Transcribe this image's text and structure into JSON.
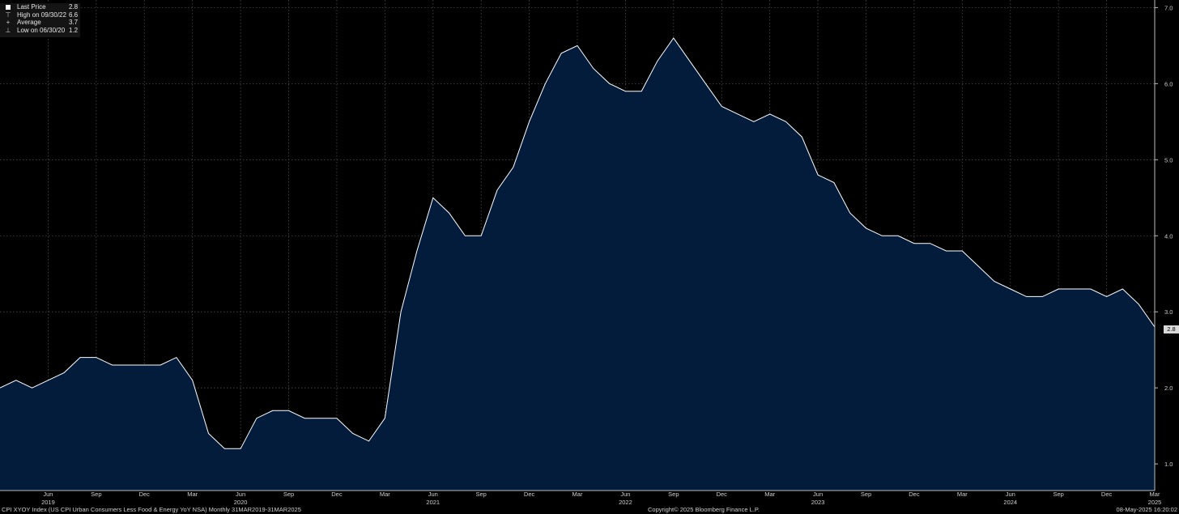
{
  "legend": {
    "items": [
      {
        "label": "Last Price",
        "value": "2.8",
        "icon": "white-square-icon"
      },
      {
        "label": "High on 09/30/22",
        "value": "6.6",
        "icon": "high-marker-icon"
      },
      {
        "label": "Average",
        "value": "3.7",
        "icon": "average-marker-icon"
      },
      {
        "label": "Low on 06/30/20",
        "value": "1.2",
        "icon": "low-marker-icon"
      }
    ]
  },
  "footer": {
    "left": "CPI XYOY Index (US CPI Urban Consumers Less Food & Energy YoY NSA)  Monthly 31MAR2019-31MAR2025",
    "center": "Copyright© 2025 Bloomberg Finance L.P.",
    "right": "08-May-2025 16:20:02"
  },
  "last_value_tag": "2.8",
  "colors": {
    "background": "#000000",
    "area_fill": "#031c3b",
    "line": "#ffffff",
    "grid": "#4a4a4a"
  },
  "chart_data": {
    "type": "area",
    "x": [
      "2019-03",
      "2019-04",
      "2019-05",
      "2019-06",
      "2019-07",
      "2019-08",
      "2019-09",
      "2019-10",
      "2019-11",
      "2019-12",
      "2020-01",
      "2020-02",
      "2020-03",
      "2020-04",
      "2020-05",
      "2020-06",
      "2020-07",
      "2020-08",
      "2020-09",
      "2020-10",
      "2020-11",
      "2020-12",
      "2021-01",
      "2021-02",
      "2021-03",
      "2021-04",
      "2021-05",
      "2021-06",
      "2021-07",
      "2021-08",
      "2021-09",
      "2021-10",
      "2021-11",
      "2021-12",
      "2022-01",
      "2022-02",
      "2022-03",
      "2022-04",
      "2022-05",
      "2022-06",
      "2022-07",
      "2022-08",
      "2022-09",
      "2022-10",
      "2022-11",
      "2022-12",
      "2023-01",
      "2023-02",
      "2023-03",
      "2023-04",
      "2023-05",
      "2023-06",
      "2023-07",
      "2023-08",
      "2023-09",
      "2023-10",
      "2023-11",
      "2023-12",
      "2024-01",
      "2024-02",
      "2024-03",
      "2024-04",
      "2024-05",
      "2024-06",
      "2024-07",
      "2024-08",
      "2024-09",
      "2024-10",
      "2024-11",
      "2024-12",
      "2025-01",
      "2025-02",
      "2025-03"
    ],
    "values": [
      2.0,
      2.1,
      2.0,
      2.1,
      2.2,
      2.4,
      2.4,
      2.3,
      2.3,
      2.3,
      2.3,
      2.4,
      2.1,
      1.4,
      1.2,
      1.2,
      1.6,
      1.7,
      1.7,
      1.6,
      1.6,
      1.6,
      1.4,
      1.3,
      1.6,
      3.0,
      3.8,
      4.5,
      4.3,
      4.0,
      4.0,
      4.6,
      4.9,
      5.5,
      6.0,
      6.4,
      6.5,
      6.2,
      6.0,
      5.9,
      5.9,
      6.3,
      6.6,
      6.3,
      6.0,
      5.7,
      5.6,
      5.5,
      5.6,
      5.5,
      5.3,
      4.8,
      4.7,
      4.3,
      4.1,
      4.0,
      4.0,
      3.9,
      3.9,
      3.8,
      3.8,
      3.6,
      3.4,
      3.3,
      3.2,
      3.2,
      3.3,
      3.3,
      3.3,
      3.2,
      3.3,
      3.1,
      2.8
    ],
    "x_tick_labels": [
      {
        "date": "2019-06",
        "label": "Jun",
        "year": "2019"
      },
      {
        "date": "2019-09",
        "label": "Sep",
        "year": ""
      },
      {
        "date": "2019-12",
        "label": "Dec",
        "year": ""
      },
      {
        "date": "2020-03",
        "label": "Mar",
        "year": ""
      },
      {
        "date": "2020-06",
        "label": "Jun",
        "year": "2020"
      },
      {
        "date": "2020-09",
        "label": "Sep",
        "year": ""
      },
      {
        "date": "2020-12",
        "label": "Dec",
        "year": ""
      },
      {
        "date": "2021-03",
        "label": "Mar",
        "year": ""
      },
      {
        "date": "2021-06",
        "label": "Jun",
        "year": "2021"
      },
      {
        "date": "2021-09",
        "label": "Sep",
        "year": ""
      },
      {
        "date": "2021-12",
        "label": "Dec",
        "year": ""
      },
      {
        "date": "2022-03",
        "label": "Mar",
        "year": ""
      },
      {
        "date": "2022-06",
        "label": "Jun",
        "year": "2022"
      },
      {
        "date": "2022-09",
        "label": "Sep",
        "year": ""
      },
      {
        "date": "2022-12",
        "label": "Dec",
        "year": ""
      },
      {
        "date": "2023-03",
        "label": "Mar",
        "year": ""
      },
      {
        "date": "2023-06",
        "label": "Jun",
        "year": "2023"
      },
      {
        "date": "2023-09",
        "label": "Sep",
        "year": ""
      },
      {
        "date": "2023-12",
        "label": "Dec",
        "year": ""
      },
      {
        "date": "2024-03",
        "label": "Mar",
        "year": ""
      },
      {
        "date": "2024-06",
        "label": "Jun",
        "year": "2024"
      },
      {
        "date": "2024-09",
        "label": "Sep",
        "year": ""
      },
      {
        "date": "2024-12",
        "label": "Dec",
        "year": ""
      },
      {
        "date": "2025-03",
        "label": "Mar",
        "year": "2025"
      }
    ],
    "y_ticks": [
      "1.0",
      "2.0",
      "3.0",
      "4.0",
      "5.0",
      "6.0",
      "7.0"
    ],
    "xlim": [
      "2019-03",
      "2025-03"
    ],
    "ylim": [
      0.65,
      7.1
    ],
    "grid": true,
    "y_axis_side": "right",
    "legend_position": "top-left"
  }
}
